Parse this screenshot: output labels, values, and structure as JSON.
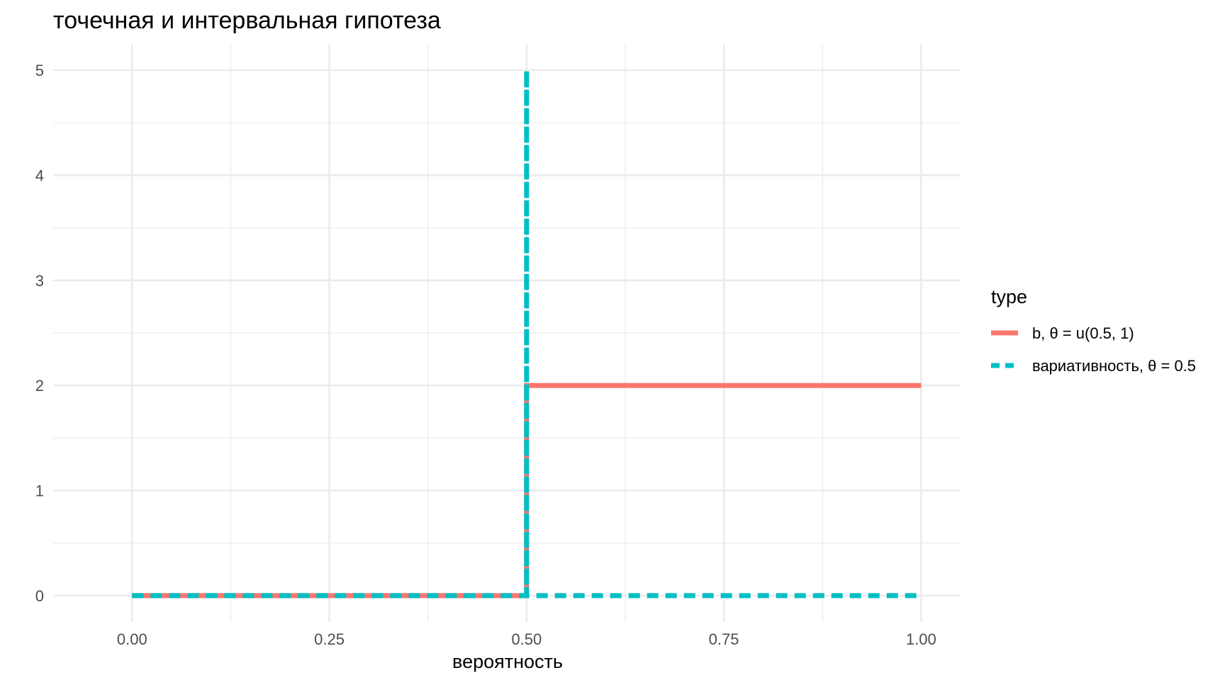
{
  "chart_data": {
    "type": "line",
    "title": "точечная и интервальная гипотеза",
    "xlabel": "вероятность",
    "ylabel": "",
    "xlim": [
      -0.1,
      1.05
    ],
    "ylim": [
      -0.25,
      5.25
    ],
    "x_ticks": [
      0,
      0.25,
      0.5,
      0.75,
      1
    ],
    "x_tick_labels": [
      "0.00",
      "0.25",
      "0.50",
      "0.75",
      "1.00"
    ],
    "y_ticks": [
      0,
      1,
      2,
      3,
      4,
      5
    ],
    "y_tick_labels": [
      "0",
      "1",
      "2",
      "3",
      "4",
      "5"
    ],
    "grid": true,
    "legend": {
      "title": "type",
      "position": "right"
    },
    "series": [
      {
        "name": "b, θ = u(0.5, 1)",
        "color": "#F8766D",
        "linestyle": "solid",
        "x": [
          0,
          0.5,
          0.5,
          1
        ],
        "y": [
          0,
          0,
          2,
          2
        ]
      },
      {
        "name": "вариативность, θ = 0.5",
        "color": "#00BFC4",
        "linestyle": "dashed",
        "x": [
          0,
          0.5,
          0.5,
          0.5,
          1
        ],
        "y": [
          0,
          0,
          5,
          0,
          0
        ]
      }
    ]
  }
}
